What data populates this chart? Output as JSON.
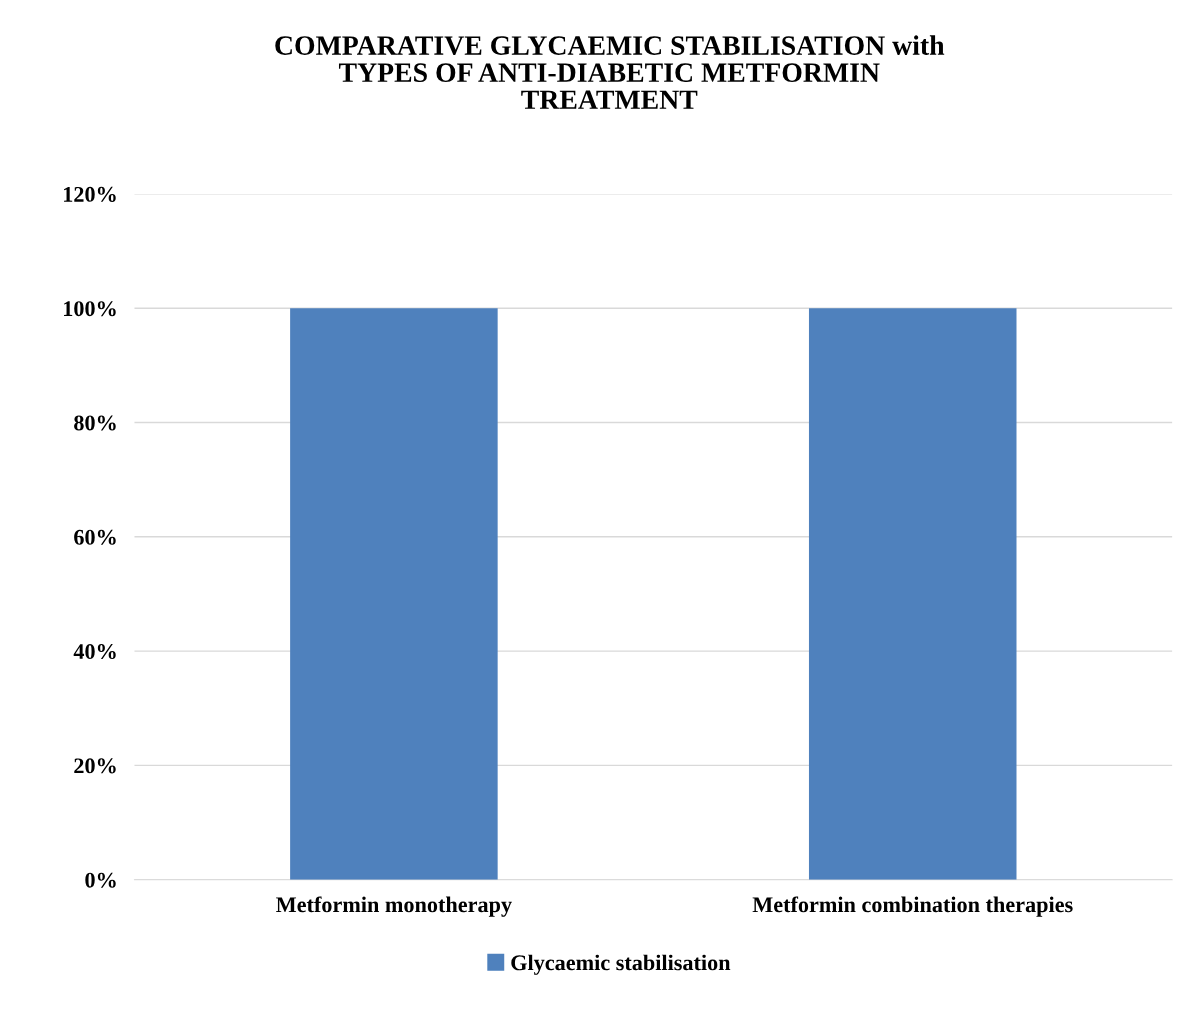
{
  "chart_data": {
    "type": "bar",
    "title": "COMPARATIVE GLYCAEMIC STABILISATION with\nTYPES OF ANTI-DIABETIC METFORMIN\nTREATMENT",
    "categories": [
      "Metformin monotherapy",
      "Metformin combination therapies"
    ],
    "series": [
      {
        "name": "Glycaemic stabilisation",
        "color": "#4f81bd",
        "values": [
          100,
          100
        ]
      }
    ],
    "ylim": [
      0,
      120
    ],
    "yticks": [
      {
        "value": 0,
        "label": "0%"
      },
      {
        "value": 20,
        "label": "20%"
      },
      {
        "value": 40,
        "label": "40%"
      },
      {
        "value": 60,
        "label": "60%"
      },
      {
        "value": 80,
        "label": "80%"
      },
      {
        "value": 100,
        "label": "100%"
      },
      {
        "value": 120,
        "label": "120%"
      }
    ],
    "grid": "y",
    "legend": "bottom"
  }
}
